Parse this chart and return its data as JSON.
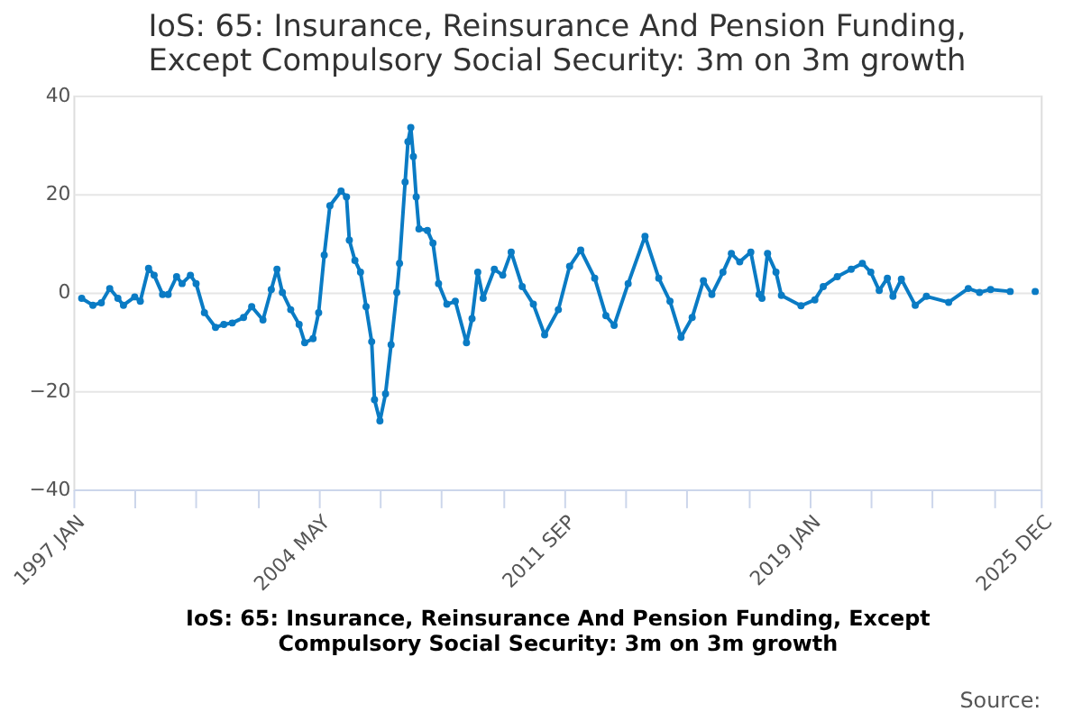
{
  "chart_data": {
    "type": "line",
    "title": "IoS: 65: Insurance, Reinsurance And Pension Funding, Except Compulsory Social Security: 3m on 3m growth",
    "xlabel": "IoS: 65: Insurance, Reinsurance And Pension Funding, Except Compulsory Social Security: 3m on 3m growth",
    "annotations": [
      "Source:"
    ],
    "x": [
      "1997-04",
      "1997-08",
      "1997-11",
      "1998-02",
      "1998-05",
      "1998-07",
      "1998-11",
      "1999-01",
      "1999-04",
      "1999-06",
      "1999-09",
      "1999-11",
      "2000-02",
      "2000-04",
      "2000-07",
      "2000-09",
      "2000-12",
      "2001-04",
      "2001-07",
      "2001-10",
      "2002-02",
      "2002-05",
      "2002-09",
      "2002-12",
      "2003-02",
      "2003-04",
      "2003-07",
      "2003-10",
      "2003-12",
      "2004-03",
      "2004-05",
      "2004-07",
      "2004-09",
      "2005-01",
      "2005-03",
      "2005-04",
      "2005-06",
      "2005-08",
      "2005-10",
      "2005-12",
      "2006-01",
      "2006-03",
      "2006-05",
      "2006-07",
      "2006-09",
      "2006-10",
      "2006-12",
      "2007-01",
      "2007-02",
      "2007-03",
      "2007-04",
      "2007-05",
      "2007-08",
      "2007-10",
      "2007-12",
      "2008-03",
      "2008-06",
      "2008-10",
      "2008-12",
      "2009-02",
      "2009-04",
      "2009-08",
      "2009-11",
      "2010-02",
      "2010-06",
      "2010-10",
      "2011-02",
      "2011-07",
      "2011-11",
      "2012-03",
      "2012-08",
      "2012-12",
      "2013-03",
      "2013-08",
      "2014-02",
      "2014-07",
      "2014-11",
      "2015-03",
      "2015-07",
      "2015-11",
      "2016-02",
      "2016-06",
      "2016-09",
      "2016-12",
      "2017-04",
      "2017-07",
      "2017-08",
      "2017-10",
      "2018-01",
      "2018-03",
      "2018-10",
      "2019-03",
      "2019-06",
      "2019-11",
      "2020-04",
      "2020-08",
      "2020-11",
      "2021-02",
      "2021-05",
      "2021-07",
      "2021-10",
      "2022-03",
      "2022-07",
      "2023-03",
      "2023-10",
      "2024-02",
      "2024-06",
      "2025-01",
      "2025-05",
      "2025-10"
    ],
    "series": [
      {
        "color": "#0a7bc4",
        "values": [
          -1.2,
          -2.6,
          -2.1,
          0.8,
          -1.2,
          -2.6,
          -0.9,
          -1.8,
          4.9,
          3.5,
          -0.4,
          -0.4,
          3.2,
          1.8,
          3.5,
          1.8,
          -4.1,
          -7.1,
          -6.5,
          -6.2,
          -5.1,
          -2.9,
          -5.6,
          0.6,
          4.7,
          0,
          -3.5,
          -6.5,
          -10.2,
          -9.4,
          -4.1,
          7.6,
          17.6,
          20.6,
          19.4,
          10.6,
          6.5,
          4.1,
          -2.9,
          -10,
          -21.8,
          -26.1,
          -20.6,
          -10.6,
          0,
          5.9,
          22.4,
          30.6,
          33.5,
          27.6,
          19.4,
          12.9,
          12.6,
          10,
          1.8,
          -2.4,
          -1.8,
          -10.2,
          -5.3,
          4.1,
          -1.2,
          4.7,
          3.5,
          8.2,
          1.2,
          -2.4,
          -8.6,
          -3.5,
          5.3,
          8.6,
          2.9,
          -4.7,
          -6.7,
          1.8,
          11.4,
          2.9,
          -1.8,
          -9.1,
          -5.1,
          2.4,
          -0.4,
          4.1,
          7.9,
          6.2,
          8.2,
          -0.4,
          -1.2,
          7.9,
          4.1,
          -0.6,
          -2.7,
          -1.5,
          1.2,
          3.2,
          4.7,
          5.9,
          4.1,
          0.4,
          2.9,
          -0.8,
          2.7,
          -2.6,
          -0.8,
          -2,
          0.8,
          0,
          0.6,
          0.2,
          null,
          0.2
        ]
      }
    ],
    "xlim": [
      "1997-01",
      "2025-12"
    ],
    "xticks": [
      {
        "value": "1997-01",
        "label": "1997 JAN"
      },
      {
        "value": "1998-11",
        "label": null
      },
      {
        "value": "2000-09",
        "label": null
      },
      {
        "value": "2002-07",
        "label": null
      },
      {
        "value": "2004-05",
        "label": "2004 MAY"
      },
      {
        "value": "2006-03",
        "label": null
      },
      {
        "value": "2008-01",
        "label": null
      },
      {
        "value": "2009-11",
        "label": null
      },
      {
        "value": "2011-09",
        "label": "2011 SEP"
      },
      {
        "value": "2013-07",
        "label": null
      },
      {
        "value": "2015-05",
        "label": null
      },
      {
        "value": "2017-03",
        "label": null
      },
      {
        "value": "2019-01",
        "label": "2019 JAN"
      },
      {
        "value": "2020-11",
        "label": null
      },
      {
        "value": "2022-09",
        "label": null
      },
      {
        "value": "2024-07",
        "label": null
      },
      {
        "value": "2025-12",
        "label": "2025 DEC"
      }
    ],
    "ylim": [
      -40,
      40
    ],
    "yticks": [
      -40,
      -20,
      0,
      20,
      40
    ],
    "grid": "y",
    "marker": "circle",
    "line_style": "solid"
  }
}
